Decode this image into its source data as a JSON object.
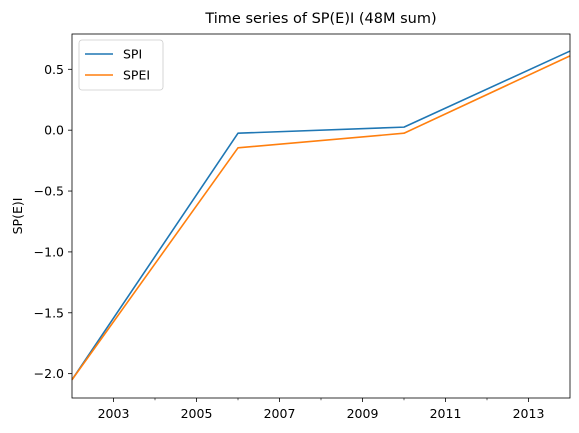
{
  "chart_data": {
    "type": "line",
    "title": "Time series of SP(E)I (48M sum)",
    "xlabel": "",
    "ylabel": "SP(E)I",
    "xlim": [
      2002,
      2014
    ],
    "ylim": [
      -2.2,
      0.79
    ],
    "x_major_ticks": [
      2003,
      2005,
      2007,
      2009,
      2011,
      2013
    ],
    "x_minor_ticks": [
      2004,
      2006,
      2008,
      2010,
      2012
    ],
    "y_ticks": [
      -2.0,
      -1.5,
      -1.0,
      -0.5,
      0.0,
      0.5
    ],
    "y_tick_labels": [
      "−2.0",
      "−1.5",
      "−1.0",
      "−0.5",
      "0.0",
      "0.5"
    ],
    "grid": false,
    "legend_position": "upper-left",
    "x": [
      2002,
      2006,
      2010,
      2014
    ],
    "series": [
      {
        "name": "SPI",
        "color": "#1f77b4",
        "values": [
          -2.05,
          -0.025,
          0.025,
          0.65
        ]
      },
      {
        "name": "SPEI",
        "color": "#ff7f0e",
        "values": [
          -2.05,
          -0.145,
          -0.025,
          0.61
        ]
      }
    ]
  }
}
